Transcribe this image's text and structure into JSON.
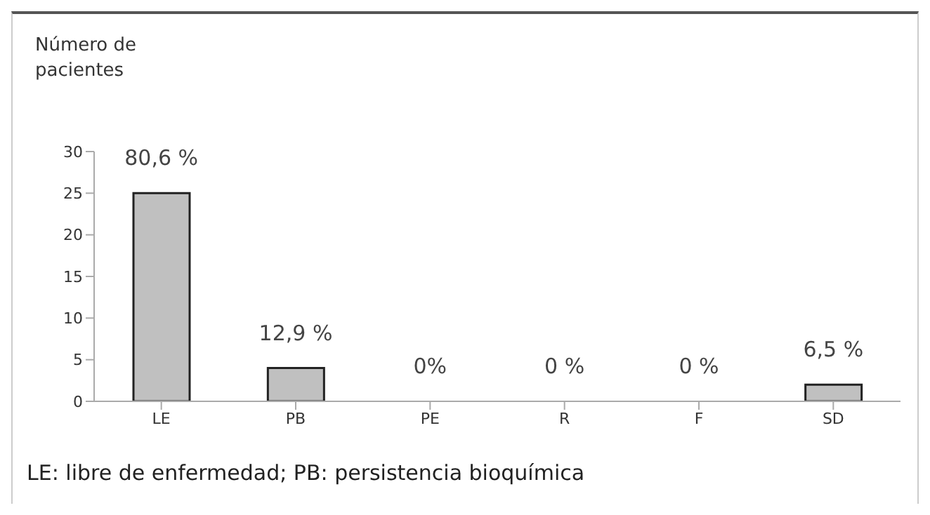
{
  "chart_data": {
    "type": "bar",
    "ylabel": "Número de pacientes",
    "categories": [
      "LE",
      "PB",
      "PE",
      "R",
      "F",
      "SD"
    ],
    "series": [
      {
        "color": "#c0c0c0",
        "values": [
          25,
          4,
          0,
          0,
          0,
          2
        ]
      }
    ],
    "value_labels": [
      "80,6 %",
      "12,9 %",
      "0%",
      "0 %",
      "0 %",
      "6,5 %"
    ],
    "ylim": [
      0,
      30
    ],
    "yticks": [
      0,
      5,
      10,
      15,
      20,
      25,
      30
    ],
    "grid": false,
    "legend": false,
    "annotations": [
      "LE: libre de enfermedad; PB: persistencia bioquímica"
    ]
  }
}
